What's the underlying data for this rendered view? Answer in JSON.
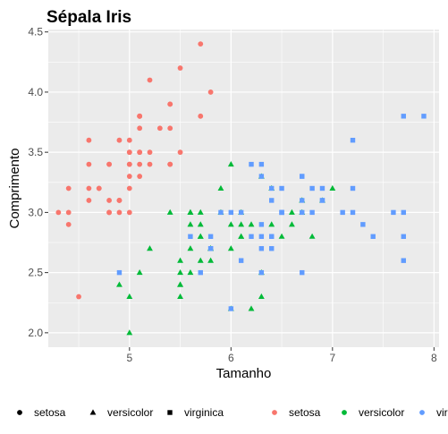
{
  "chart_data": {
    "type": "scatter",
    "title": "Sépala Iris",
    "xlabel": "Tamanho",
    "ylabel": "Comprimento",
    "xlim": [
      4.2,
      8.05
    ],
    "ylim": [
      1.88,
      4.52
    ],
    "x_ticks": [
      5,
      6,
      7,
      8
    ],
    "y_ticks": [
      2.0,
      2.5,
      3.0,
      3.5,
      4.0,
      4.5
    ],
    "x_tick_labels": [
      "5",
      "6",
      "7",
      "8"
    ],
    "y_tick_labels": [
      "2.0",
      "2.5",
      "3.0",
      "3.5",
      "4.0",
      "4.5"
    ],
    "grid": true,
    "panel_background": "#ebebeb",
    "legend_position": "bottom",
    "shape_legend": [
      {
        "label": "setosa",
        "shape": "circle"
      },
      {
        "label": "versicolor",
        "shape": "triangle"
      },
      {
        "label": "virginica",
        "shape": "square"
      }
    ],
    "color_legend": [
      {
        "label": "setosa",
        "color": "#F8766D"
      },
      {
        "label": "versicolor",
        "color": "#00BA38"
      },
      {
        "label": "virginica",
        "color": "#619CFF"
      }
    ],
    "series": [
      {
        "name": "setosa",
        "color": "#F8766D",
        "shape": "circle",
        "points": [
          [
            5.1,
            3.5
          ],
          [
            4.9,
            3.0
          ],
          [
            4.7,
            3.2
          ],
          [
            4.6,
            3.1
          ],
          [
            5.0,
            3.6
          ],
          [
            5.4,
            3.9
          ],
          [
            4.6,
            3.4
          ],
          [
            5.0,
            3.4
          ],
          [
            4.4,
            2.9
          ],
          [
            4.9,
            3.1
          ],
          [
            5.4,
            3.7
          ],
          [
            4.8,
            3.4
          ],
          [
            4.8,
            3.0
          ],
          [
            4.3,
            3.0
          ],
          [
            5.8,
            4.0
          ],
          [
            5.7,
            4.4
          ],
          [
            5.4,
            3.9
          ],
          [
            5.1,
            3.5
          ],
          [
            5.7,
            3.8
          ],
          [
            5.1,
            3.8
          ],
          [
            5.4,
            3.4
          ],
          [
            5.1,
            3.7
          ],
          [
            4.6,
            3.6
          ],
          [
            5.1,
            3.3
          ],
          [
            4.8,
            3.4
          ],
          [
            5.0,
            3.0
          ],
          [
            5.0,
            3.4
          ],
          [
            5.2,
            3.5
          ],
          [
            5.2,
            3.4
          ],
          [
            4.7,
            3.2
          ],
          [
            4.8,
            3.1
          ],
          [
            5.4,
            3.4
          ],
          [
            5.2,
            4.1
          ],
          [
            5.5,
            4.2
          ],
          [
            4.9,
            3.1
          ],
          [
            5.0,
            3.2
          ],
          [
            5.5,
            3.5
          ],
          [
            4.9,
            3.6
          ],
          [
            4.4,
            3.0
          ],
          [
            5.1,
            3.4
          ],
          [
            5.0,
            3.5
          ],
          [
            4.5,
            2.3
          ],
          [
            4.4,
            3.2
          ],
          [
            5.0,
            3.5
          ],
          [
            5.1,
            3.8
          ],
          [
            4.8,
            3.0
          ],
          [
            5.1,
            3.8
          ],
          [
            4.6,
            3.2
          ],
          [
            5.3,
            3.7
          ],
          [
            5.0,
            3.3
          ]
        ]
      },
      {
        "name": "versicolor",
        "color": "#00BA38",
        "shape": "triangle",
        "points": [
          [
            7.0,
            3.2
          ],
          [
            6.4,
            3.2
          ],
          [
            6.9,
            3.1
          ],
          [
            5.5,
            2.3
          ],
          [
            6.5,
            2.8
          ],
          [
            5.7,
            2.8
          ],
          [
            6.3,
            3.3
          ],
          [
            4.9,
            2.4
          ],
          [
            6.6,
            2.9
          ],
          [
            5.2,
            2.7
          ],
          [
            5.0,
            2.0
          ],
          [
            5.9,
            3.0
          ],
          [
            6.0,
            2.2
          ],
          [
            6.1,
            2.9
          ],
          [
            5.6,
            2.9
          ],
          [
            6.7,
            3.1
          ],
          [
            5.6,
            3.0
          ],
          [
            5.8,
            2.7
          ],
          [
            6.2,
            2.2
          ],
          [
            5.6,
            2.5
          ],
          [
            5.9,
            3.2
          ],
          [
            6.1,
            2.8
          ],
          [
            6.3,
            2.5
          ],
          [
            6.1,
            2.8
          ],
          [
            6.4,
            2.9
          ],
          [
            6.6,
            3.0
          ],
          [
            6.8,
            2.8
          ],
          [
            6.7,
            3.0
          ],
          [
            6.0,
            2.9
          ],
          [
            5.7,
            2.6
          ],
          [
            5.5,
            2.4
          ],
          [
            5.5,
            2.4
          ],
          [
            5.8,
            2.7
          ],
          [
            6.0,
            2.7
          ],
          [
            5.4,
            3.0
          ],
          [
            6.0,
            3.4
          ],
          [
            6.7,
            3.1
          ],
          [
            6.3,
            2.3
          ],
          [
            5.6,
            3.0
          ],
          [
            5.5,
            2.5
          ],
          [
            5.5,
            2.6
          ],
          [
            6.1,
            3.0
          ],
          [
            5.8,
            2.6
          ],
          [
            5.0,
            2.3
          ],
          [
            5.6,
            2.7
          ],
          [
            5.7,
            3.0
          ],
          [
            5.7,
            2.9
          ],
          [
            6.2,
            2.9
          ],
          [
            5.1,
            2.5
          ],
          [
            5.7,
            2.8
          ]
        ]
      },
      {
        "name": "virginica",
        "color": "#619CFF",
        "shape": "square",
        "points": [
          [
            6.3,
            3.3
          ],
          [
            5.8,
            2.7
          ],
          [
            7.1,
            3.0
          ],
          [
            6.3,
            2.9
          ],
          [
            6.5,
            3.0
          ],
          [
            7.6,
            3.0
          ],
          [
            4.9,
            2.5
          ],
          [
            7.3,
            2.9
          ],
          [
            6.7,
            2.5
          ],
          [
            7.2,
            3.6
          ],
          [
            6.5,
            3.2
          ],
          [
            6.4,
            2.7
          ],
          [
            6.8,
            3.0
          ],
          [
            5.7,
            2.5
          ],
          [
            5.8,
            2.8
          ],
          [
            6.4,
            3.2
          ],
          [
            6.5,
            3.0
          ],
          [
            7.7,
            3.8
          ],
          [
            7.7,
            2.6
          ],
          [
            6.0,
            2.2
          ],
          [
            6.9,
            3.2
          ],
          [
            5.6,
            2.8
          ],
          [
            7.7,
            2.8
          ],
          [
            6.3,
            2.7
          ],
          [
            6.7,
            3.3
          ],
          [
            7.2,
            3.2
          ],
          [
            6.2,
            2.8
          ],
          [
            6.1,
            3.0
          ],
          [
            6.4,
            2.8
          ],
          [
            7.2,
            3.0
          ],
          [
            7.4,
            2.8
          ],
          [
            7.9,
            3.8
          ],
          [
            6.4,
            2.8
          ],
          [
            6.3,
            2.8
          ],
          [
            6.1,
            2.6
          ],
          [
            7.7,
            3.0
          ],
          [
            6.3,
            3.4
          ],
          [
            6.4,
            3.1
          ],
          [
            6.0,
            3.0
          ],
          [
            6.9,
            3.1
          ],
          [
            6.7,
            3.1
          ],
          [
            6.9,
            3.1
          ],
          [
            5.8,
            2.7
          ],
          [
            6.8,
            3.2
          ],
          [
            6.7,
            3.3
          ],
          [
            6.7,
            3.0
          ],
          [
            6.3,
            2.5
          ],
          [
            6.5,
            3.0
          ],
          [
            6.2,
            3.4
          ],
          [
            5.9,
            3.0
          ]
        ]
      }
    ]
  }
}
